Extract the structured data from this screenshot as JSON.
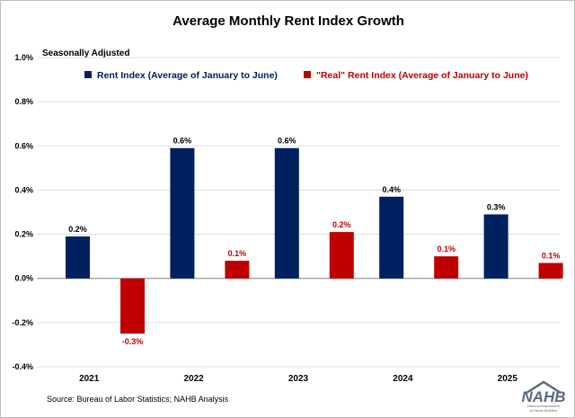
{
  "chart_data": {
    "type": "bar",
    "title": "Average Monthly Rent Index Growth",
    "subtitle": "Seasonally Adjusted",
    "categories": [
      "2021",
      "2022",
      "2023",
      "2024",
      "2025"
    ],
    "series": [
      {
        "name": "Rent Index (Average of January to June)",
        "color": "#002060",
        "values": [
          0.19,
          0.59,
          0.59,
          0.37,
          0.29
        ],
        "labels": [
          "0.2%",
          "0.6%",
          "0.6%",
          "0.4%",
          "0.3%"
        ],
        "label_color": "#000000"
      },
      {
        "name": "\"Real\" Rent Index (Average of January to June)",
        "color": "#c00000",
        "values": [
          -0.25,
          0.08,
          0.21,
          0.1,
          0.07
        ],
        "labels": [
          "-0.3%",
          "0.1%",
          "0.2%",
          "0.1%",
          "0.1%"
        ],
        "label_color": "#c00000"
      }
    ],
    "yticks": [
      "1.0%",
      "0.8%",
      "0.6%",
      "0.4%",
      "0.2%",
      "0.0%",
      "-0.2%",
      "-0.4%"
    ],
    "ylim": [
      -0.4,
      1.0
    ],
    "grid": true,
    "legend_position": "top"
  },
  "source": "Source: Bureau of Labor Statistics; NAHB Analysis",
  "logo": {
    "text": "NAHB",
    "line1": "National Association",
    "line2": "of Home Builders",
    "color": "#5a6a82"
  }
}
